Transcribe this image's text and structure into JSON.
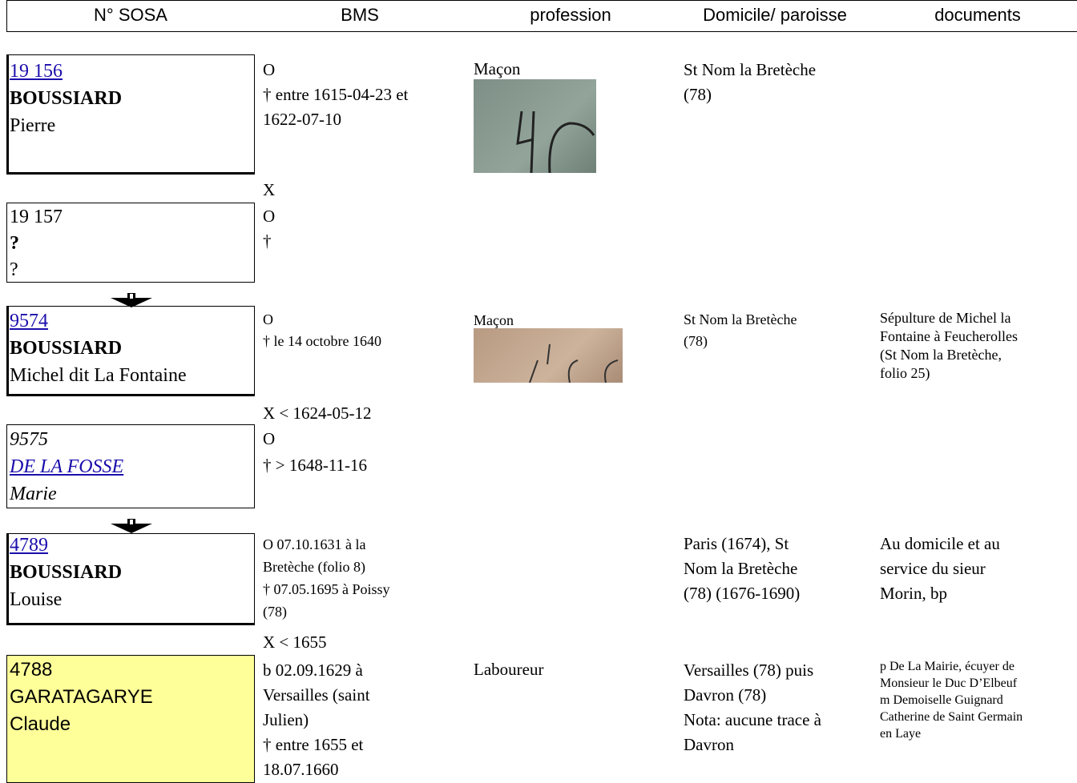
{
  "header": {
    "columns": [
      "N° SOSA",
      "BMS",
      "profession",
      "Domicile/ paroisse",
      "documents"
    ]
  },
  "people": [
    {
      "sosa": "19 156",
      "surname": "BOUSSIARD",
      "given": "Pierre",
      "bms": [
        "O",
        "† entre 1615-04-23 et",
        "1622-07-10"
      ],
      "profession": "Maçon",
      "domicile": [
        "St Nom la Bretèche",
        "(78)"
      ]
    },
    {
      "sosa": "19 157",
      "surname": "?",
      "given": "?",
      "bms": [
        "O",
        "†"
      ]
    },
    {
      "sosa": "9574",
      "surname": "BOUSSIARD",
      "given": "Michel dit La Fontaine",
      "bms": [
        "O",
        "† le 14 octobre 1640"
      ],
      "profession": "Maçon",
      "domicile": [
        "St Nom la Bretèche",
        "(78)"
      ],
      "documents": [
        "Sépulture de Michel la",
        "Fontaine à Feucherolles",
        "(St Nom la Bretèche,",
        "folio 25)"
      ]
    },
    {
      "sosa": "9575",
      "surname": "DE LA FOSSE",
      "given": "Marie",
      "bms": [
        "O",
        "† > 1648-11-16"
      ]
    },
    {
      "sosa": "4789",
      "surname": "BOUSSIARD",
      "given": "Louise",
      "bms": [
        "O 07.10.1631 à la",
        "Bretèche (folio 8)",
        "† 07.05.1695 à Poissy",
        "(78)"
      ],
      "domicile": [
        "Paris (1674), St",
        "Nom la Bretèche",
        "(78) (1676-1690)"
      ],
      "documents": [
        "Au domicile et au",
        "service du sieur",
        "Morin, bp"
      ]
    },
    {
      "sosa": "4788",
      "surname": "GARATAGARYE",
      "given": "Claude",
      "bms": [
        "b 02.09.1629 à",
        "Versailles (saint",
        "Julien)",
        "† entre 1655 et",
        "18.07.1660"
      ],
      "profession": "Laboureur",
      "domicile": [
        "Versailles (78) puis",
        "Davron (78)",
        "Nota: aucune trace à",
        "Davron"
      ],
      "documents": [
        "p De La Mairie, écuyer de",
        "Monsieur le Duc D’Elbeuf",
        "m Demoiselle Guignard",
        "Catherine de Saint Germain",
        "en Laye"
      ]
    }
  ],
  "marriages": [
    "X",
    "X < 1624-05-12",
    "X < 1655"
  ]
}
